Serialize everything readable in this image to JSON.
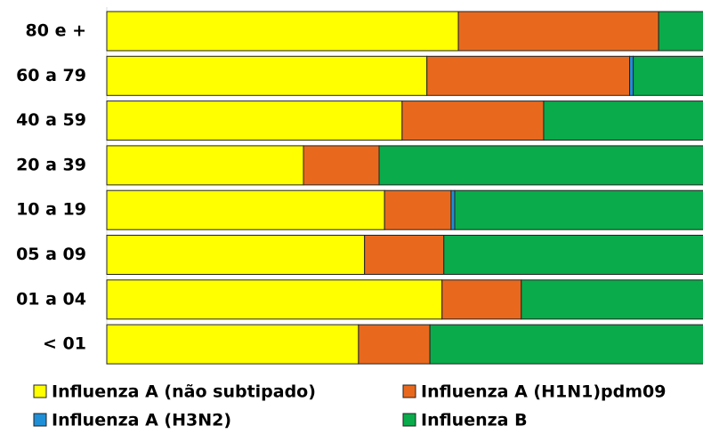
{
  "chart_data": {
    "type": "stacked-bar-horizontal",
    "categories": [
      "80 e +",
      "60 a 79",
      "40 a 59",
      "20 a 39",
      "10 a 19",
      "05 a 09",
      "01 a 04",
      "< 01"
    ],
    "series": [
      {
        "name": "Influenza A (não subtipado)",
        "color": "#ffff00",
        "values": [
          58.1,
          52.9,
          48.8,
          32.5,
          45.9,
          42.6,
          55.4,
          41.6
        ]
      },
      {
        "name": "Influenza A (H1N1)pdm09",
        "color": "#e8691e",
        "values": [
          33.1,
          33.5,
          23.4,
          12.5,
          11.0,
          13.1,
          13.1,
          11.8
        ]
      },
      {
        "name": "Influenza A (H3N2)",
        "color": "#1f8fd8",
        "values": [
          0,
          0.6,
          0,
          0,
          0.6,
          0,
          0,
          0
        ]
      },
      {
        "name": "Influenza B",
        "color": "#0aab4a",
        "values": [
          8.8,
          13.0,
          27.8,
          55.0,
          42.5,
          44.3,
          31.5,
          46.6
        ]
      }
    ],
    "xlim": [
      0,
      100
    ]
  }
}
